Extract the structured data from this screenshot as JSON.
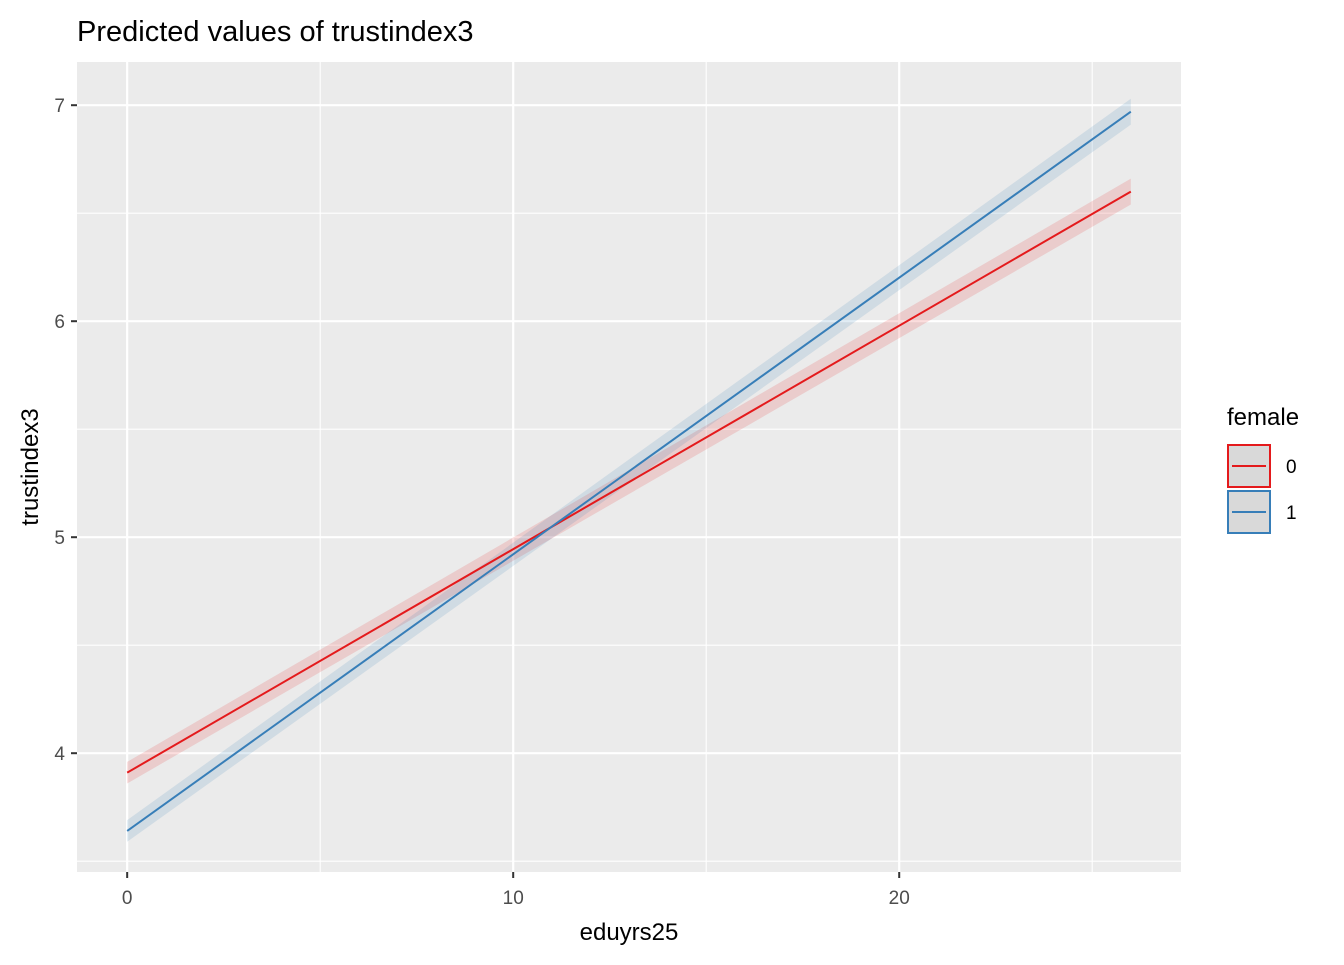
{
  "chart_data": {
    "type": "line",
    "title": "Predicted values of trustindex3",
    "xlabel": "eduyrs25",
    "ylabel": "trustindex3",
    "xlim": [
      -1.3,
      27.3
    ],
    "ylim": [
      3.45,
      7.2
    ],
    "x_ticks": [
      0,
      10,
      20
    ],
    "x_tick_labels": [
      "0",
      "10",
      "20"
    ],
    "x_minor_ticks": [
      5,
      15,
      25
    ],
    "y_ticks": [
      4,
      5,
      6,
      7
    ],
    "y_tick_labels": [
      "4",
      "5",
      "6",
      "7"
    ],
    "y_minor_ticks": [
      3.5,
      4.5,
      5.5,
      6.5
    ],
    "grid": true,
    "legend": {
      "title": "female",
      "position": "right"
    },
    "series": [
      {
        "name": "0",
        "color": "#e41a1c",
        "band_color": "#e41a1c",
        "x": [
          0,
          26
        ],
        "y": [
          3.91,
          6.6
        ],
        "ci_low": [
          3.86,
          6.54
        ],
        "ci_high": [
          3.96,
          6.66
        ]
      },
      {
        "name": "1",
        "color": "#377eb8",
        "band_color": "#377eb8",
        "x": [
          0,
          26
        ],
        "y": [
          3.64,
          6.97
        ],
        "ci_low": [
          3.59,
          6.91
        ],
        "ci_high": [
          3.69,
          7.03
        ]
      }
    ]
  }
}
